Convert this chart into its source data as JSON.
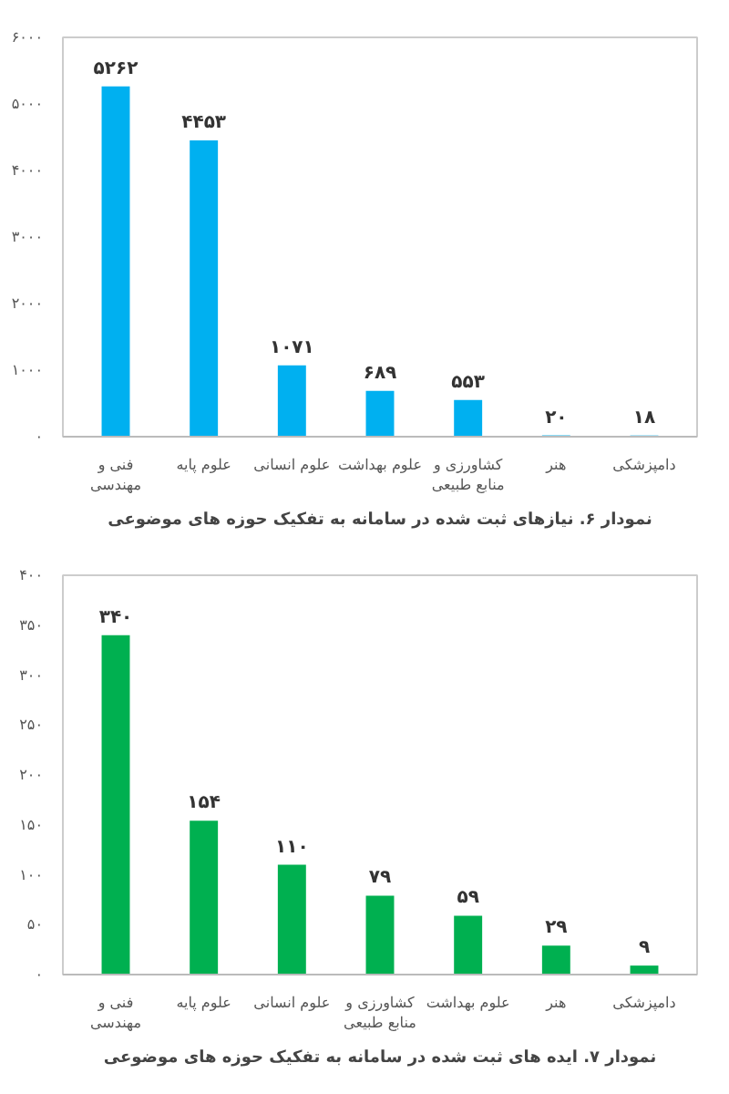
{
  "chart_data": [
    {
      "type": "bar",
      "title": "نمودار ۶. نیازهای ثبت شده در سامانه به تفکیک حوزه های موضوعی",
      "categories": [
        "فنی و مهندسی",
        "علوم پایه",
        "علوم انسانی",
        "علوم بهداشت",
        "کشاورزی و منابع طبیعی",
        "هنر",
        "دامپزشکی"
      ],
      "values": [
        5262,
        4453,
        1071,
        689,
        553,
        20,
        18
      ],
      "value_labels": [
        "۵۲۶۲",
        "۴۴۵۳",
        "۱۰۷۱",
        "۶۸۹",
        "۵۵۳",
        "۲۰",
        "۱۸"
      ],
      "color": "#00b0f0",
      "ylim": [
        0,
        6000
      ],
      "yticks": [
        {
          "value": 0,
          "label": "۰"
        },
        {
          "value": 1000,
          "label": "۱۰۰۰"
        },
        {
          "value": 2000,
          "label": "۲۰۰۰"
        },
        {
          "value": 3000,
          "label": "۳۰۰۰"
        },
        {
          "value": 4000,
          "label": "۴۰۰۰"
        },
        {
          "value": 5000,
          "label": "۵۰۰۰"
        },
        {
          "value": 6000,
          "label": "۶۰۰۰"
        }
      ],
      "grid": false
    },
    {
      "type": "bar",
      "title": "نمودار ۷. ایده های ثبت شده در سامانه به تفکیک حوزه های موضوعی",
      "categories": [
        "فنی و مهندسی",
        "علوم پایه",
        "علوم انسانی",
        "کشاورزی و منابع طبیعی",
        "علوم بهداشت",
        "هنر",
        "دامپزشکی"
      ],
      "values": [
        340,
        154,
        110,
        79,
        59,
        29,
        9
      ],
      "value_labels": [
        "۳۴۰",
        "۱۵۴",
        "۱۱۰",
        "۷۹",
        "۵۹",
        "۲۹",
        "۹"
      ],
      "color": "#00b050",
      "ylim": [
        0,
        400
      ],
      "yticks": [
        {
          "value": 0,
          "label": "۰"
        },
        {
          "value": 50,
          "label": "۵۰"
        },
        {
          "value": 100,
          "label": "۱۰۰"
        },
        {
          "value": 150,
          "label": "۱۵۰"
        },
        {
          "value": 200,
          "label": "۲۰۰"
        },
        {
          "value": 250,
          "label": "۲۵۰"
        },
        {
          "value": 300,
          "label": "۳۰۰"
        },
        {
          "value": 350,
          "label": "۳۵۰"
        },
        {
          "value": 400,
          "label": "۴۰۰"
        }
      ],
      "grid": false
    }
  ]
}
